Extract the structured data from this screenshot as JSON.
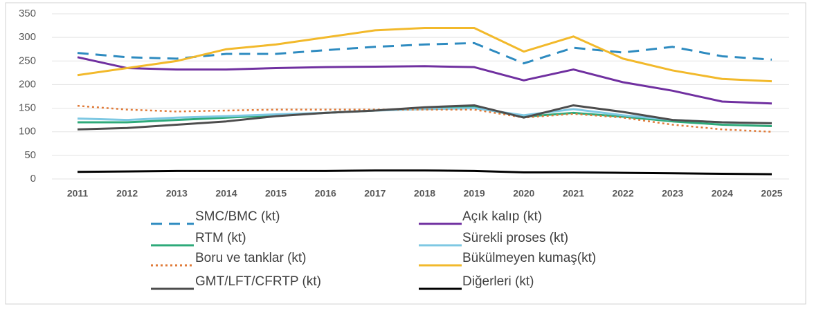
{
  "chart_data": {
    "type": "line",
    "categories": [
      "2011",
      "2012",
      "2013",
      "2014",
      "2015",
      "2016",
      "2017",
      "2018",
      "2019",
      "2020",
      "2021",
      "2022",
      "2023",
      "2024",
      "2025"
    ],
    "ylim": [
      0,
      350
    ],
    "yticks": [
      0,
      50,
      100,
      150,
      200,
      250,
      300,
      350
    ],
    "grid": true,
    "series": [
      {
        "name": "SMC/BMC (kt)",
        "color": "#2e8bc0",
        "dash": "dashed",
        "values": [
          267,
          258,
          255,
          265,
          265,
          273,
          280,
          285,
          288,
          245,
          278,
          268,
          280,
          260,
          253
        ]
      },
      {
        "name": "Açık kalıp (kt)",
        "color": "#7030a0",
        "dash": "solid",
        "values": [
          258,
          235,
          232,
          232,
          235,
          237,
          238,
          239,
          237,
          209,
          232,
          205,
          187,
          164,
          160
        ]
      },
      {
        "name": "RTM (kt)",
        "color": "#2eaa7a",
        "dash": "solid",
        "values": [
          120,
          120,
          125,
          130,
          135,
          140,
          145,
          150,
          152,
          132,
          140,
          132,
          122,
          115,
          112
        ]
      },
      {
        "name": "Sürekli proses (kt)",
        "color": "#7ec8e3",
        "dash": "solid",
        "values": [
          128,
          125,
          130,
          133,
          137,
          140,
          145,
          148,
          150,
          135,
          148,
          135,
          125,
          120,
          118
        ]
      },
      {
        "name": "Boru ve tanklar (kt)",
        "color": "#e07b39",
        "dash": "dotted",
        "values": [
          155,
          147,
          143,
          145,
          147,
          147,
          147,
          147,
          147,
          130,
          138,
          130,
          115,
          105,
          100
        ]
      },
      {
        "name": "Bükülmeyen kumaş(kt)",
        "color": "#f2b92b",
        "dash": "solid",
        "values": [
          220,
          235,
          250,
          275,
          285,
          300,
          315,
          320,
          320,
          270,
          302,
          255,
          230,
          212,
          207
        ]
      },
      {
        "name": "GMT/LFT/CFRTP (kt)",
        "color": "#4d4d4d",
        "dash": "solid",
        "values": [
          105,
          108,
          115,
          122,
          133,
          140,
          145,
          152,
          156,
          130,
          156,
          142,
          125,
          120,
          118
        ]
      },
      {
        "name": "Diğerleri (kt)",
        "color": "#000000",
        "dash": "solid",
        "values": [
          15,
          16,
          17,
          17,
          17,
          17,
          18,
          18,
          17,
          14,
          14,
          13,
          12,
          11,
          10
        ]
      }
    ]
  }
}
